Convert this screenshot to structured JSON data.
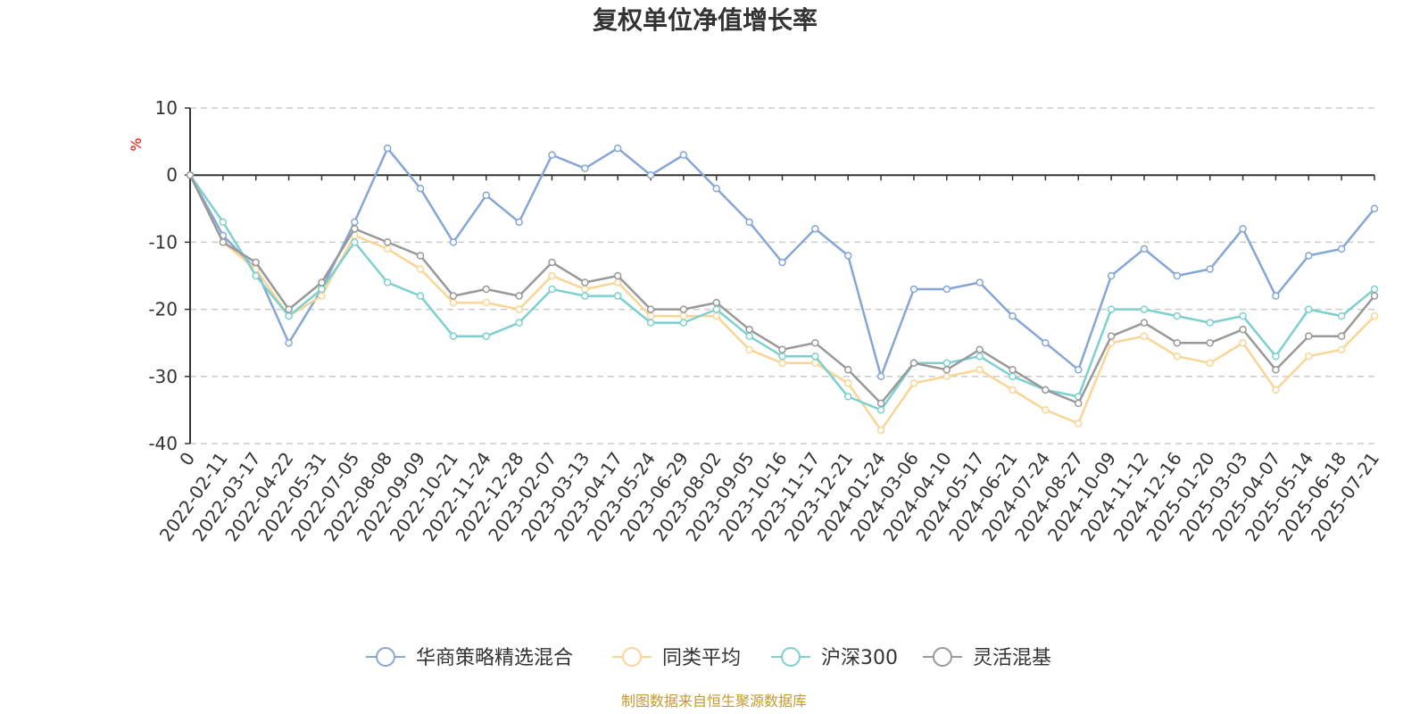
{
  "chart_data": {
    "type": "line",
    "title": "复权单位净值增长率",
    "ylabel": "%",
    "ylim": [
      -40,
      10
    ],
    "yticks": [
      10,
      0,
      -10,
      -20,
      -30,
      -40
    ],
    "grid": true,
    "legend_position": "bottom",
    "source_text": "制图数据来自恒生聚源数据库",
    "x": [
      "0",
      "2022-02-11",
      "2022-03-17",
      "2022-04-22",
      "2022-05-31",
      "2022-07-05",
      "2022-08-08",
      "2022-09-09",
      "2022-10-21",
      "2022-11-24",
      "2022-12-28",
      "2023-02-07",
      "2023-03-13",
      "2023-04-17",
      "2023-05-24",
      "2023-06-29",
      "2023-08-02",
      "2023-09-05",
      "2023-10-16",
      "2023-11-17",
      "2023-12-21",
      "2024-01-24",
      "2024-03-06",
      "2024-04-10",
      "2024-05-17",
      "2024-06-21",
      "2024-07-24",
      "2024-08-27",
      "2024-10-09",
      "2024-11-12",
      "2024-12-16",
      "2025-01-20",
      "2025-03-03",
      "2025-04-07",
      "2025-05-14",
      "2025-06-18",
      "2025-07-21"
    ],
    "series": [
      {
        "name": "华商策略精选混合",
        "color": "#86a6d6",
        "values": [
          0,
          -9,
          -14,
          -25,
          -17,
          -7,
          4,
          -2,
          -10,
          -3,
          -7,
          3,
          1,
          4,
          0,
          3,
          -2,
          -7,
          -13,
          -8,
          -12,
          -30,
          -17,
          -17,
          -16,
          -21,
          -25,
          -29,
          -15,
          -11,
          -15,
          -14,
          -8,
          -18,
          -12,
          -11,
          -5
        ]
      },
      {
        "name": "同类平均",
        "color": "#f9d596",
        "values": [
          0,
          -10,
          -14,
          -21,
          -18,
          -9,
          -11,
          -14,
          -19,
          -19,
          -20,
          -15,
          -17,
          -16,
          -21,
          -21,
          -21,
          -26,
          -28,
          -28,
          -31,
          -38,
          -31,
          -30,
          -29,
          -32,
          -35,
          -37,
          -25,
          -24,
          -27,
          -28,
          -25,
          -32,
          -27,
          -26,
          -21
        ]
      },
      {
        "name": "沪深300",
        "color": "#7dd0d0",
        "values": [
          0,
          -7,
          -15,
          -21,
          -17,
          -10,
          -16,
          -18,
          -24,
          -24,
          -22,
          -17,
          -18,
          -18,
          -22,
          -22,
          -20,
          -24,
          -27,
          -27,
          -33,
          -35,
          -28,
          -28,
          -27,
          -30,
          -32,
          -33,
          -20,
          -20,
          -21,
          -22,
          -21,
          -27,
          -20,
          -21,
          -17
        ]
      },
      {
        "name": "灵活混基",
        "color": "#999999",
        "values": [
          0,
          -10,
          -13,
          -20,
          -16,
          -8,
          -10,
          -12,
          -18,
          -17,
          -18,
          -13,
          -16,
          -15,
          -20,
          -20,
          -19,
          -23,
          -26,
          -25,
          -29,
          -34,
          -28,
          -29,
          -26,
          -29,
          -32,
          -34,
          -24,
          -22,
          -25,
          -25,
          -23,
          -29,
          -24,
          -24,
          -18
        ]
      }
    ]
  }
}
